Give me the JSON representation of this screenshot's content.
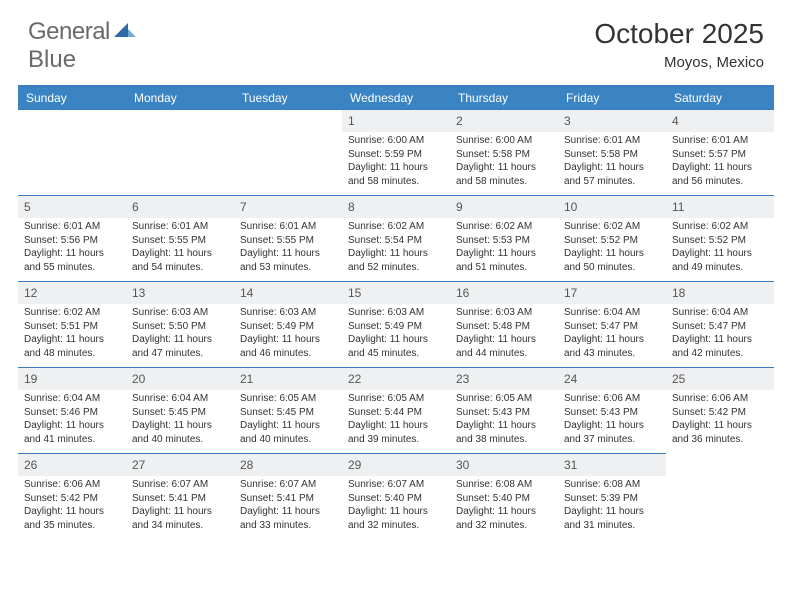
{
  "logo": {
    "text1": "General",
    "text2": "Blue"
  },
  "title": {
    "month": "October 2025",
    "location": "Moyos, Mexico"
  },
  "styling": {
    "header_bg": "#3b84c4",
    "header_text": "#ffffff",
    "border_color": "#3a7abf",
    "daynum_bg": "#eef0f2",
    "body_text": "#333333",
    "logo_color": "#6a6a6a",
    "logo_accent": "#2f6aa8",
    "daynum_fontsize": 12,
    "info_fontsize": 10,
    "dayhead_fontsize": 12,
    "month_fontsize": 28,
    "location_fontsize": 15,
    "logo_fontsize": 24
  },
  "days_of_week": [
    "Sunday",
    "Monday",
    "Tuesday",
    "Wednesday",
    "Thursday",
    "Friday",
    "Saturday"
  ],
  "leading_empty": 3,
  "days": [
    {
      "n": 1,
      "sunrise": "6:00 AM",
      "sunset": "5:59 PM",
      "daylight": "11 hours and 58 minutes."
    },
    {
      "n": 2,
      "sunrise": "6:00 AM",
      "sunset": "5:58 PM",
      "daylight": "11 hours and 58 minutes."
    },
    {
      "n": 3,
      "sunrise": "6:01 AM",
      "sunset": "5:58 PM",
      "daylight": "11 hours and 57 minutes."
    },
    {
      "n": 4,
      "sunrise": "6:01 AM",
      "sunset": "5:57 PM",
      "daylight": "11 hours and 56 minutes."
    },
    {
      "n": 5,
      "sunrise": "6:01 AM",
      "sunset": "5:56 PM",
      "daylight": "11 hours and 55 minutes."
    },
    {
      "n": 6,
      "sunrise": "6:01 AM",
      "sunset": "5:55 PM",
      "daylight": "11 hours and 54 minutes."
    },
    {
      "n": 7,
      "sunrise": "6:01 AM",
      "sunset": "5:55 PM",
      "daylight": "11 hours and 53 minutes."
    },
    {
      "n": 8,
      "sunrise": "6:02 AM",
      "sunset": "5:54 PM",
      "daylight": "11 hours and 52 minutes."
    },
    {
      "n": 9,
      "sunrise": "6:02 AM",
      "sunset": "5:53 PM",
      "daylight": "11 hours and 51 minutes."
    },
    {
      "n": 10,
      "sunrise": "6:02 AM",
      "sunset": "5:52 PM",
      "daylight": "11 hours and 50 minutes."
    },
    {
      "n": 11,
      "sunrise": "6:02 AM",
      "sunset": "5:52 PM",
      "daylight": "11 hours and 49 minutes."
    },
    {
      "n": 12,
      "sunrise": "6:02 AM",
      "sunset": "5:51 PM",
      "daylight": "11 hours and 48 minutes."
    },
    {
      "n": 13,
      "sunrise": "6:03 AM",
      "sunset": "5:50 PM",
      "daylight": "11 hours and 47 minutes."
    },
    {
      "n": 14,
      "sunrise": "6:03 AM",
      "sunset": "5:49 PM",
      "daylight": "11 hours and 46 minutes."
    },
    {
      "n": 15,
      "sunrise": "6:03 AM",
      "sunset": "5:49 PM",
      "daylight": "11 hours and 45 minutes."
    },
    {
      "n": 16,
      "sunrise": "6:03 AM",
      "sunset": "5:48 PM",
      "daylight": "11 hours and 44 minutes."
    },
    {
      "n": 17,
      "sunrise": "6:04 AM",
      "sunset": "5:47 PM",
      "daylight": "11 hours and 43 minutes."
    },
    {
      "n": 18,
      "sunrise": "6:04 AM",
      "sunset": "5:47 PM",
      "daylight": "11 hours and 42 minutes."
    },
    {
      "n": 19,
      "sunrise": "6:04 AM",
      "sunset": "5:46 PM",
      "daylight": "11 hours and 41 minutes."
    },
    {
      "n": 20,
      "sunrise": "6:04 AM",
      "sunset": "5:45 PM",
      "daylight": "11 hours and 40 minutes."
    },
    {
      "n": 21,
      "sunrise": "6:05 AM",
      "sunset": "5:45 PM",
      "daylight": "11 hours and 40 minutes."
    },
    {
      "n": 22,
      "sunrise": "6:05 AM",
      "sunset": "5:44 PM",
      "daylight": "11 hours and 39 minutes."
    },
    {
      "n": 23,
      "sunrise": "6:05 AM",
      "sunset": "5:43 PM",
      "daylight": "11 hours and 38 minutes."
    },
    {
      "n": 24,
      "sunrise": "6:06 AM",
      "sunset": "5:43 PM",
      "daylight": "11 hours and 37 minutes."
    },
    {
      "n": 25,
      "sunrise": "6:06 AM",
      "sunset": "5:42 PM",
      "daylight": "11 hours and 36 minutes."
    },
    {
      "n": 26,
      "sunrise": "6:06 AM",
      "sunset": "5:42 PM",
      "daylight": "11 hours and 35 minutes."
    },
    {
      "n": 27,
      "sunrise": "6:07 AM",
      "sunset": "5:41 PM",
      "daylight": "11 hours and 34 minutes."
    },
    {
      "n": 28,
      "sunrise": "6:07 AM",
      "sunset": "5:41 PM",
      "daylight": "11 hours and 33 minutes."
    },
    {
      "n": 29,
      "sunrise": "6:07 AM",
      "sunset": "5:40 PM",
      "daylight": "11 hours and 32 minutes."
    },
    {
      "n": 30,
      "sunrise": "6:08 AM",
      "sunset": "5:40 PM",
      "daylight": "11 hours and 32 minutes."
    },
    {
      "n": 31,
      "sunrise": "6:08 AM",
      "sunset": "5:39 PM",
      "daylight": "11 hours and 31 minutes."
    }
  ],
  "labels": {
    "sunrise": "Sunrise:",
    "sunset": "Sunset:",
    "daylight": "Daylight:"
  }
}
